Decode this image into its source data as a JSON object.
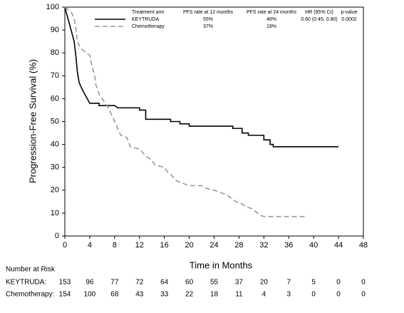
{
  "chart_data": {
    "type": "line",
    "y_label": "Progression-Free Survival (%)",
    "x_label": "Time in Months",
    "xlim": [
      0,
      48
    ],
    "xticks": [
      0,
      4,
      8,
      12,
      16,
      20,
      24,
      28,
      32,
      36,
      40,
      44,
      48
    ],
    "ylim": [
      0,
      100
    ],
    "yticks": [
      0,
      10,
      20,
      30,
      40,
      50,
      60,
      70,
      80,
      90,
      100
    ],
    "series": [
      {
        "name": "KEYTRUDA",
        "color": "#000000",
        "line_style": "solid",
        "x": [
          0,
          0.5,
          1,
          1.5,
          1.8,
          2,
          2.3,
          2.8,
          3.2,
          3.6,
          4,
          5.5,
          5.5,
          8,
          8.5,
          12,
          12,
          13,
          13,
          17,
          17,
          18.5,
          18.5,
          20,
          20,
          27,
          27,
          28.5,
          28.5,
          29.5,
          29.5,
          32,
          32,
          33,
          33,
          33.5,
          33.5,
          44
        ],
        "values": [
          100,
          95,
          90,
          85,
          78,
          72,
          67,
          64,
          62,
          60,
          58,
          58,
          57,
          57,
          56,
          56,
          55,
          55,
          51,
          51,
          50,
          50,
          49,
          49,
          48,
          48,
          47,
          47,
          45,
          45,
          44,
          44,
          42,
          42,
          40,
          40,
          39,
          39
        ]
      },
      {
        "name": "Chemotherapy",
        "color": "#999999",
        "line_style": "dashed",
        "x": [
          0,
          1,
          1.5,
          1.8,
          2,
          2.5,
          3,
          4,
          4.3,
          4.8,
          5,
          5.5,
          6.5,
          7,
          7.5,
          8,
          8.5,
          9,
          10,
          10.5,
          12,
          13,
          14,
          14.5,
          16,
          16.5,
          17,
          18,
          19,
          20,
          22,
          22.5,
          24,
          25,
          26,
          27,
          27.5,
          28.5,
          29,
          30,
          30.5,
          31,
          31.5,
          32,
          39
        ],
        "values": [
          100,
          98,
          95,
          90,
          85,
          82,
          81,
          79,
          75,
          70,
          66,
          62,
          58,
          56,
          53,
          50,
          47,
          44,
          43,
          39,
          38,
          35,
          33,
          31,
          30,
          28,
          27,
          24,
          23,
          22,
          22,
          21,
          20,
          19,
          18,
          16,
          15,
          14,
          13,
          12,
          11,
          10,
          9,
          8.5,
          8.5
        ]
      }
    ],
    "legend_table": {
      "header": [
        "Treatment arm",
        "PFS rate at 12 months",
        "PFS rate at 24 months",
        "HR (95% CI)",
        "p-value"
      ],
      "rows": [
        [
          "KEYTRUDA",
          "55%",
          "48%",
          "0.60 (0.45, 0.80)",
          "0.0002"
        ],
        [
          "Chemotherapy",
          "37%",
          "19%"
        ]
      ]
    },
    "at_risk": {
      "title": "Number at Risk",
      "rows": [
        {
          "label": "KEYTRUDA:",
          "values": [
            153,
            96,
            77,
            72,
            64,
            60,
            55,
            37,
            20,
            7,
            5,
            0,
            0
          ]
        },
        {
          "label": "Chemotherapy:",
          "values": [
            154,
            100,
            68,
            43,
            33,
            22,
            18,
            11,
            4,
            3,
            0,
            0,
            0
          ]
        }
      ]
    }
  }
}
